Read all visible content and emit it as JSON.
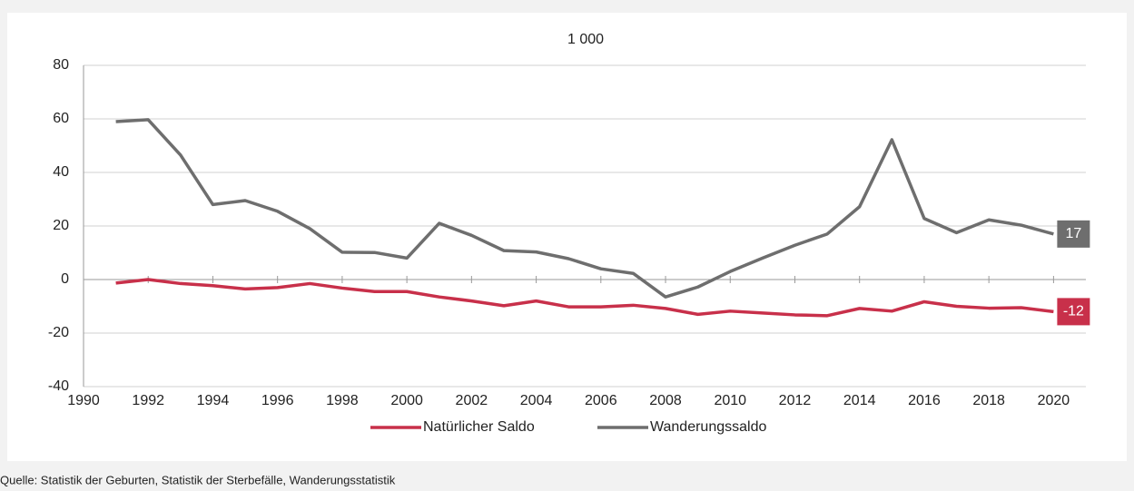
{
  "chart_data": {
    "type": "line",
    "subtitle": "1 000",
    "x": [
      1991,
      1992,
      1993,
      1994,
      1995,
      1996,
      1997,
      1998,
      1999,
      2000,
      2001,
      2002,
      2003,
      2004,
      2005,
      2006,
      2007,
      2008,
      2009,
      2010,
      2011,
      2012,
      2013,
      2014,
      2015,
      2016,
      2017,
      2018,
      2019,
      2020
    ],
    "series": [
      {
        "name": "Natürlicher Saldo",
        "color": "#c8304a",
        "values": [
          -1.3,
          0,
          -1.5,
          -2.3,
          -3.5,
          -3,
          -1.5,
          -3.2,
          -4.5,
          -4.5,
          -6.5,
          -8,
          -9.8,
          -8,
          -10.2,
          -10.2,
          -9.6,
          -10.8,
          -13,
          -11.8,
          -12.5,
          -13.2,
          -13.5,
          -10.8,
          -11.8,
          -8.3,
          -10,
          -10.7,
          -10.5,
          -12
        ]
      },
      {
        "name": "Wanderungssaldo",
        "color": "#6e6e6e",
        "values": [
          59,
          59.7,
          46.5,
          28,
          29.5,
          25.5,
          19,
          10.2,
          10.1,
          8,
          21,
          16.5,
          10.8,
          10.3,
          7.8,
          4,
          2.3,
          -6.5,
          -2.8,
          3,
          8,
          12.8,
          17,
          27.2,
          52.2,
          22.8,
          17.5,
          22.3,
          20.3,
          17
        ]
      }
    ],
    "xlim": [
      1990,
      2021
    ],
    "xticks": [
      1990,
      1992,
      1994,
      1996,
      1998,
      2000,
      2002,
      2004,
      2006,
      2008,
      2010,
      2012,
      2014,
      2016,
      2018,
      2020
    ],
    "ylim": [
      -40,
      80
    ],
    "yticks": [
      -40,
      -20,
      0,
      20,
      40,
      60,
      80
    ],
    "grid": true,
    "legend": "bottom",
    "source": "Quelle: Statistik der Geburten, Statistik der Sterbefälle, Wanderungsstatistik"
  }
}
